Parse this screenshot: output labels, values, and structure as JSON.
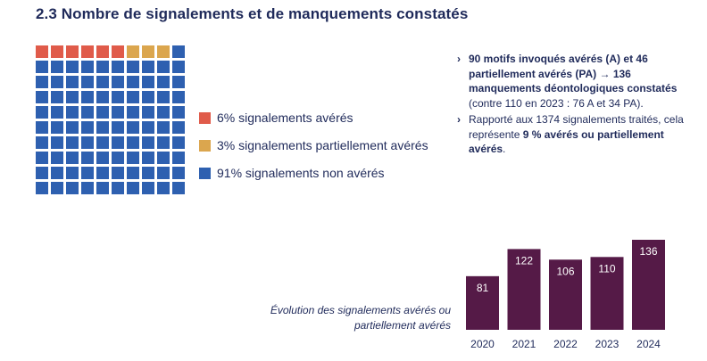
{
  "title": "2.3 Nombre de signalements et de manquements constatés",
  "colors": {
    "averes": "#e05b4a",
    "partiels": "#dba64e",
    "non_averes": "#2e60b0",
    "bars": "#551a47",
    "text": "#1f2a5a"
  },
  "legend": [
    {
      "label": "6% signalements avérés",
      "color": "#e05b4a"
    },
    {
      "label": "3% signalements partiellement avérés",
      "color": "#dba64e"
    },
    {
      "label": "91% signalements non avérés",
      "color": "#2e60b0"
    }
  ],
  "notes": [
    {
      "marker": "›",
      "parts": [
        {
          "text": "90 motifs invoqués avérés (A) et 46 partiellement avérés (PA) → 136 manquements déontologiques constatés",
          "bold": true
        },
        {
          "text": " (contre 110 en 2023 : 76 A et 34 PA).",
          "bold": false
        }
      ]
    },
    {
      "marker": "›",
      "parts": [
        {
          "text": "Rapporté aux 1374 signalements traités, cela représente ",
          "bold": false
        },
        {
          "text": "9 % avérés ou partiellement avérés",
          "bold": true
        },
        {
          "text": ".",
          "bold": false
        }
      ]
    }
  ],
  "caption": "Évolution des signalements avérés ou partiellement avérés",
  "chart_data": [
    {
      "type": "waffle",
      "total": 100,
      "grid": {
        "rows": 10,
        "cols": 10
      },
      "segments": [
        {
          "label": "6% signalements avérés",
          "value": 6,
          "color": "#e05b4a"
        },
        {
          "label": "3% signalements partiellement avérés",
          "value": 3,
          "color": "#dba64e"
        },
        {
          "label": "91% signalements non avérés",
          "value": 91,
          "color": "#2e60b0"
        }
      ]
    },
    {
      "type": "bar",
      "categories": [
        "2020",
        "2021",
        "2022",
        "2023",
        "2024"
      ],
      "values": [
        81,
        122,
        106,
        110,
        136
      ],
      "data_labels": [
        "81",
        "122",
        "106",
        "110",
        "136"
      ],
      "color": "#551a47",
      "ylim": [
        0,
        136
      ]
    }
  ]
}
